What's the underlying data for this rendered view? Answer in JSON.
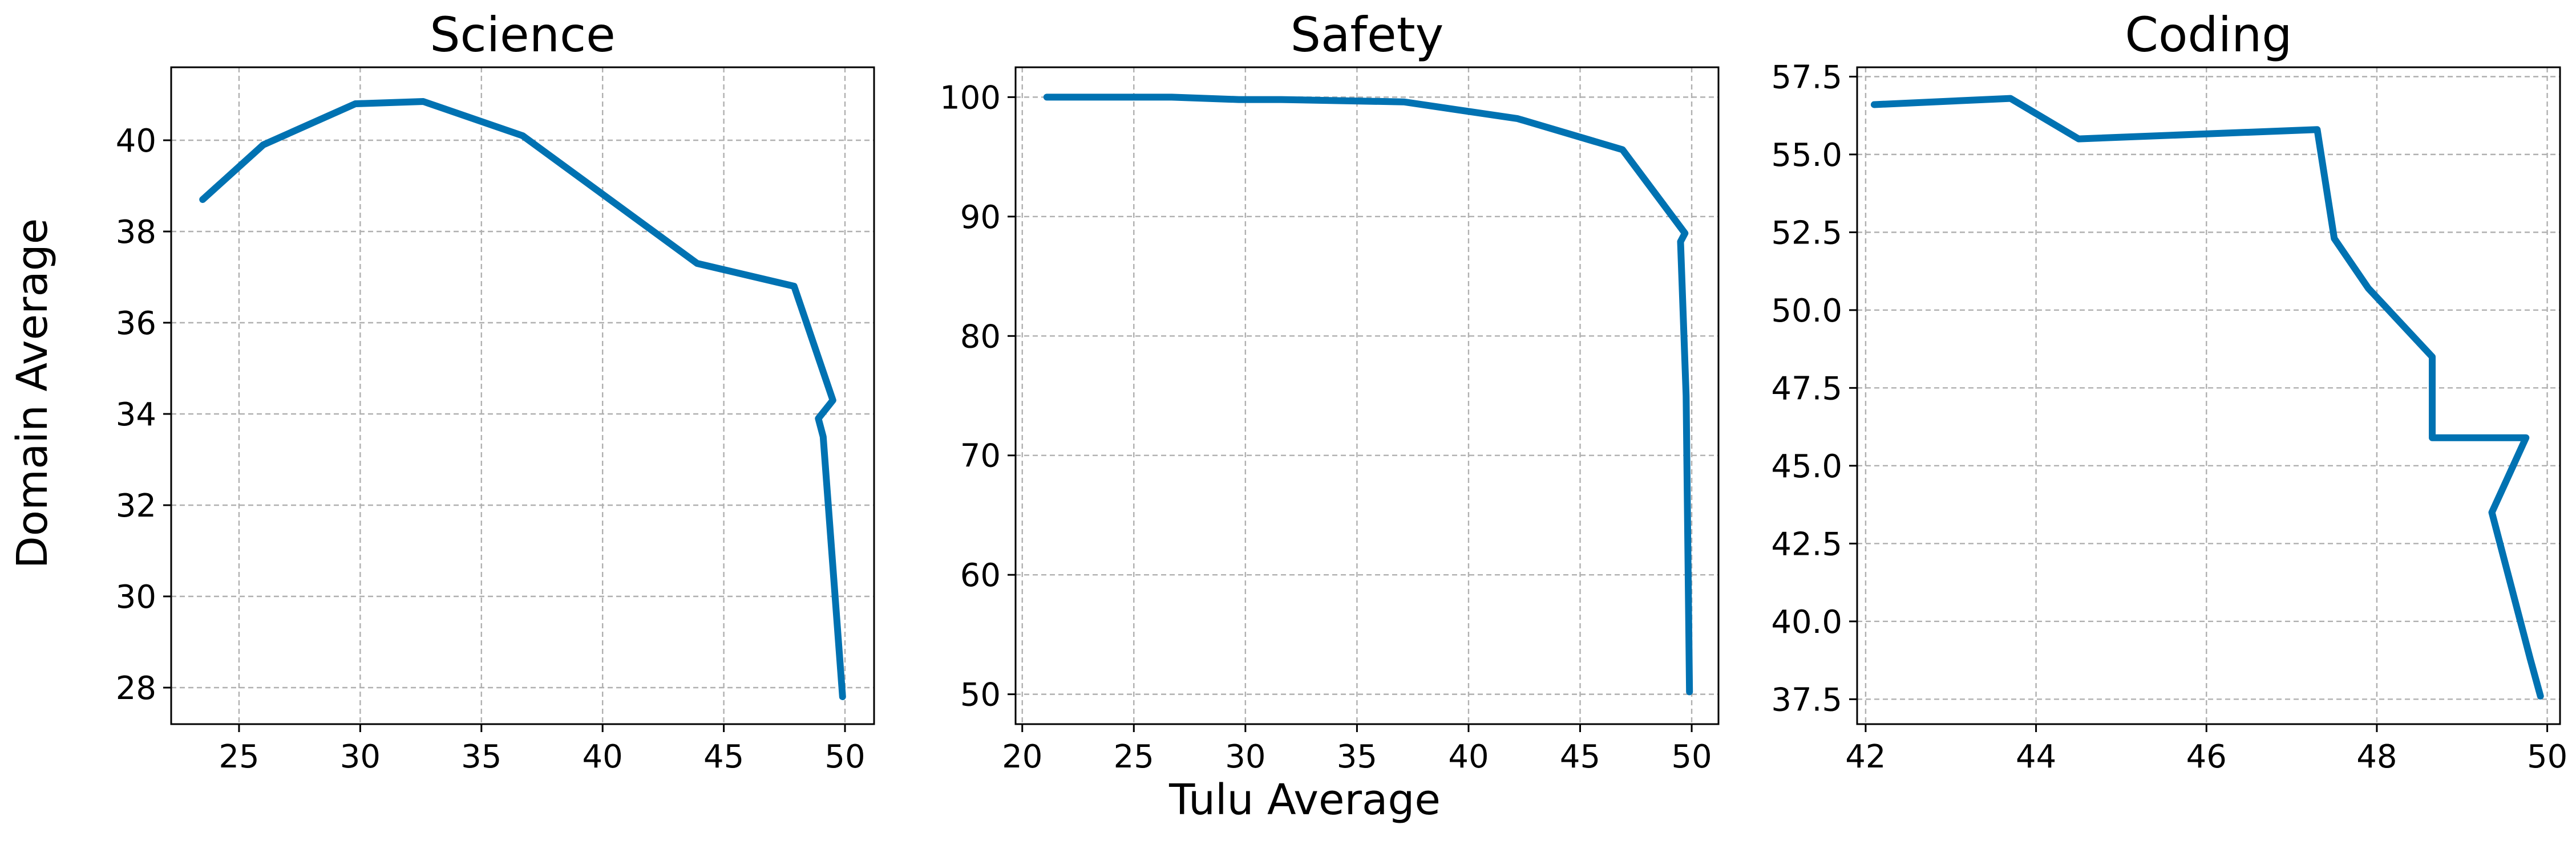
{
  "figure": {
    "xlabel": "Tulu Average",
    "ylabel": "Domain Average",
    "line_color": "#0072b2"
  },
  "chart_data": [
    {
      "type": "line",
      "title": "Science",
      "xlabel": "",
      "ylabel": "Domain Average",
      "xlim": [
        22.2,
        51.2
      ],
      "ylim": [
        27.2,
        41.6
      ],
      "xticks": [
        25,
        30,
        35,
        40,
        45,
        50
      ],
      "yticks": [
        28,
        30,
        32,
        34,
        36,
        38,
        40
      ],
      "ytick_decimals": 0,
      "grid": true,
      "series": [
        {
          "x": [
            23.5,
            26.0,
            29.8,
            32.6,
            36.7,
            43.9,
            47.9,
            49.5,
            48.9,
            49.1,
            49.9
          ],
          "y": [
            38.7,
            39.9,
            40.8,
            40.85,
            40.1,
            37.3,
            36.8,
            34.3,
            33.9,
            33.5,
            27.8
          ]
        }
      ]
    },
    {
      "type": "line",
      "title": "Safety",
      "xlabel": "Tulu Average",
      "ylabel": "",
      "xlim": [
        19.7,
        51.2
      ],
      "ylim": [
        47.5,
        102.5
      ],
      "xticks": [
        20,
        25,
        30,
        35,
        40,
        45,
        50
      ],
      "yticks": [
        50,
        60,
        70,
        80,
        90,
        100
      ],
      "ytick_decimals": 0,
      "grid": true,
      "series": [
        {
          "x": [
            21.1,
            26.7,
            29.7,
            31.6,
            37.1,
            42.2,
            46.9,
            49.7,
            49.5,
            49.75,
            49.9
          ],
          "y": [
            100.0,
            100.0,
            99.8,
            99.8,
            99.6,
            98.2,
            95.6,
            88.6,
            87.9,
            75.0,
            50.2
          ]
        }
      ]
    },
    {
      "type": "line",
      "title": "Coding",
      "xlabel": "",
      "ylabel": "",
      "xlim": [
        41.9,
        50.15
      ],
      "ylim": [
        36.7,
        57.8
      ],
      "xticks": [
        42,
        44,
        46,
        48,
        50
      ],
      "yticks": [
        37.5,
        40.0,
        42.5,
        45.0,
        47.5,
        50.0,
        52.5,
        55.0,
        57.5
      ],
      "ytick_decimals": 1,
      "grid": true,
      "series": [
        {
          "x": [
            42.1,
            43.7,
            44.5,
            47.3,
            47.5,
            47.9,
            48.65,
            48.65,
            49.75,
            49.35,
            49.8,
            49.92
          ],
          "y": [
            56.6,
            56.8,
            55.5,
            55.8,
            52.3,
            50.7,
            48.5,
            45.9,
            45.9,
            43.5,
            38.8,
            37.6
          ]
        }
      ]
    }
  ]
}
